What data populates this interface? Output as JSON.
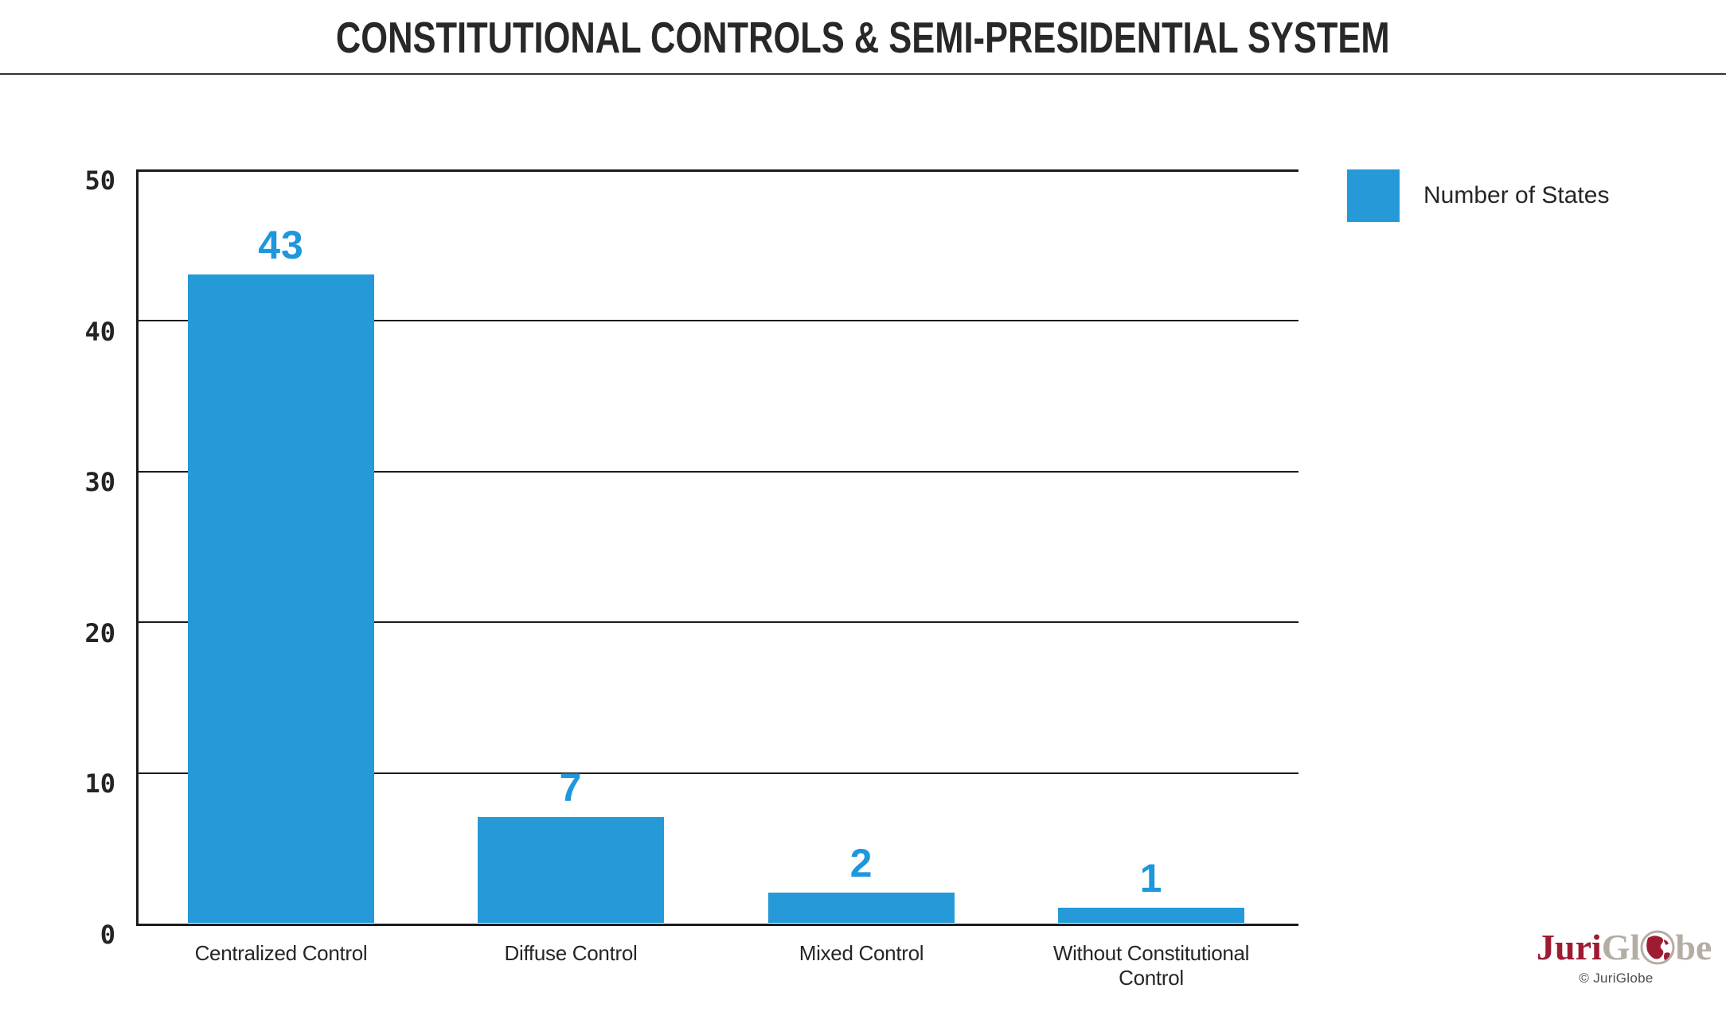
{
  "title": "CONSTITUTIONAL CONTROLS & SEMI-PRESIDENTIAL SYSTEM",
  "chart_data": {
    "type": "bar",
    "categories": [
      "Centralized Control",
      "Diffuse Control",
      "Mixed Control",
      "Without Constitutional Control"
    ],
    "values": [
      43,
      7,
      2,
      1
    ],
    "series_name": "Number of States",
    "title": "CONSTITUTIONAL CONTROLS & SEMI-PRESIDENTIAL SYSTEM",
    "xlabel": "",
    "ylabel": "",
    "ylim": [
      0,
      50
    ],
    "yticks": [
      0,
      10,
      20,
      30,
      40,
      50
    ],
    "grid": true,
    "legend_position": "top-right",
    "bar_color": "#2699d8",
    "value_label_color": "#1d97dd"
  },
  "legend": {
    "label": "Number of States",
    "swatch_color": "#2699d8"
  },
  "branding": {
    "logo_part_juri": "Juri",
    "logo_part_gl": "Gl",
    "logo_part_be": "be",
    "copyright": "© JuriGlobe",
    "logo_red": "#9e1b32",
    "logo_gray": "#b4ada3"
  }
}
